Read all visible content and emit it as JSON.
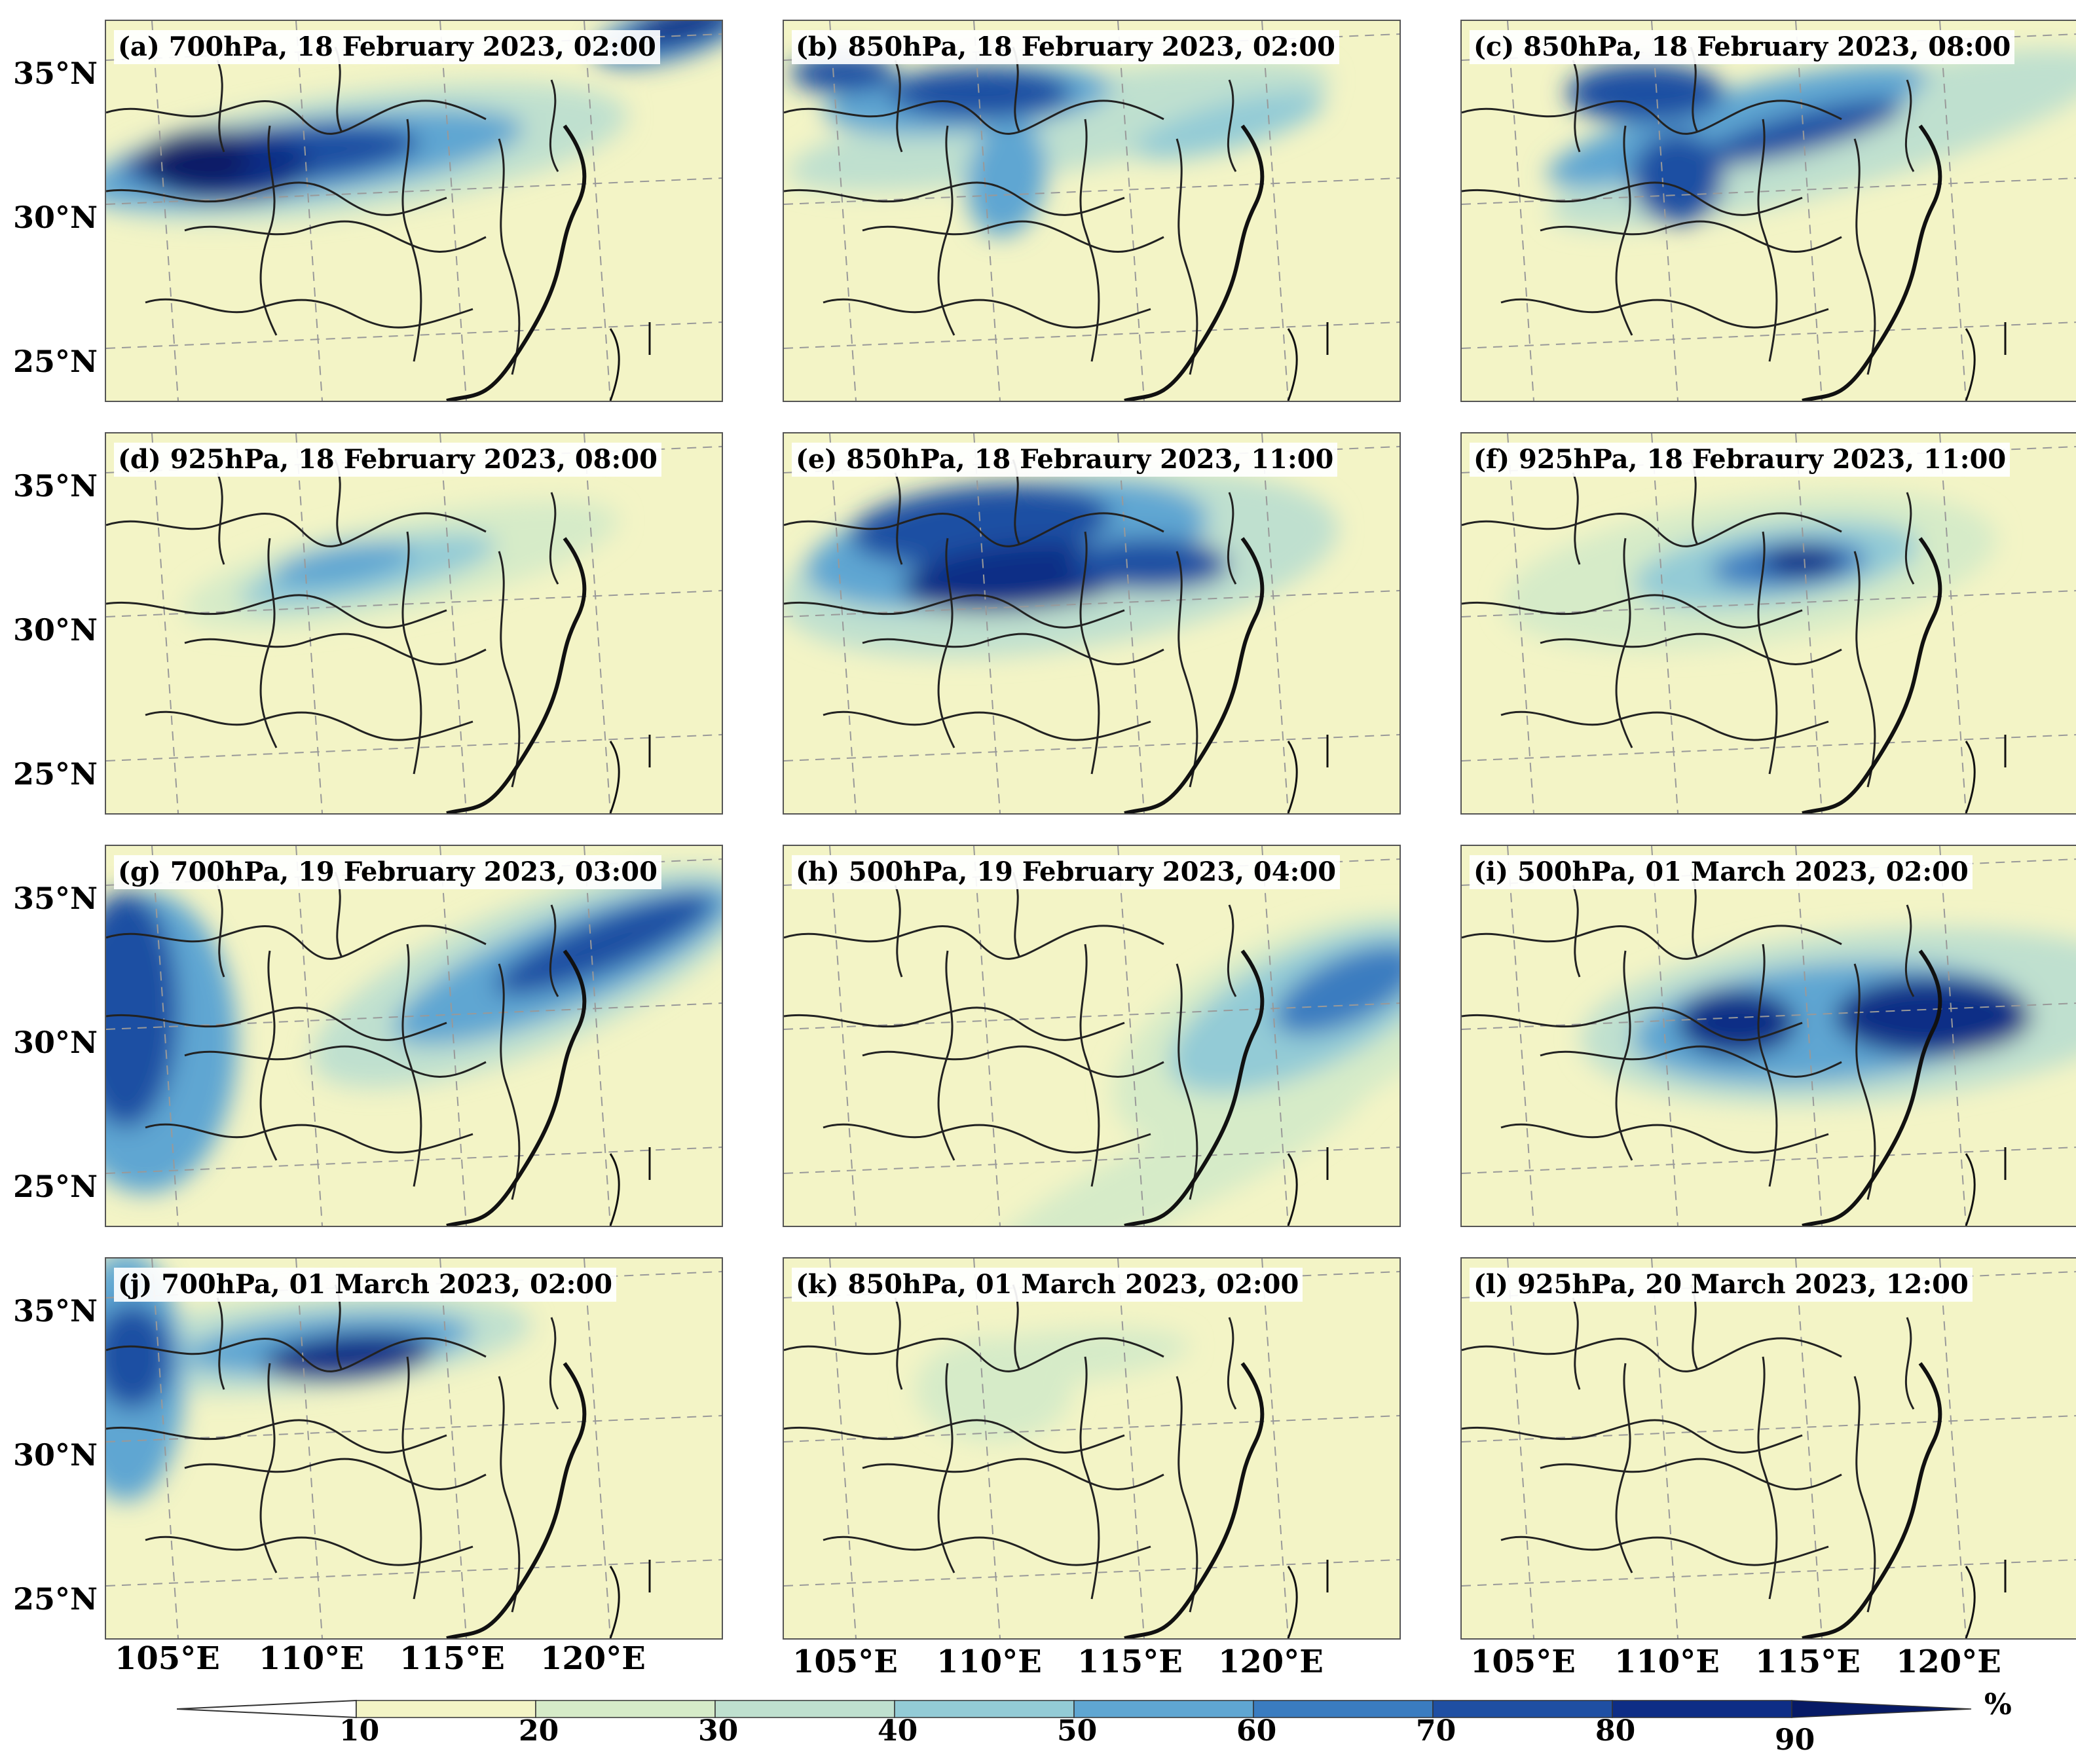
{
  "panels": [
    {
      "id": "a",
      "title": "(a) 700hPa, 18 February 2023, 02:00"
    },
    {
      "id": "b",
      "title": "(b) 850hPa, 18 February 2023, 02:00"
    },
    {
      "id": "c",
      "title": "(c) 850hPa, 18 February 2023, 08:00"
    },
    {
      "id": "d",
      "title": "(d) 925hPa, 18 February 2023, 08:00"
    },
    {
      "id": "e",
      "title": "(e) 850hPa, 18 Febraury 2023, 11:00"
    },
    {
      "id": "f",
      "title": "(f) 925hPa, 18 Febraury 2023, 11:00"
    },
    {
      "id": "g",
      "title": "(g) 700hPa, 19 February 2023, 03:00"
    },
    {
      "id": "h",
      "title": "(h) 500hPa, 19 February 2023, 04:00"
    },
    {
      "id": "i",
      "title": "(i) 500hPa, 01 March 2023, 02:00"
    },
    {
      "id": "j",
      "title": "(j) 700hPa, 01 March 2023, 02:00"
    },
    {
      "id": "k",
      "title": "(k) 850hPa, 01 March 2023, 02:00"
    },
    {
      "id": "l",
      "title": "(l) 925hPa, 20 March 2023, 12:00"
    }
  ],
  "lat_labels": [
    "35°N",
    "30°N",
    "25°N"
  ],
  "lon_labels": [
    "105°E",
    "110°E",
    "115°E",
    "120°E"
  ],
  "colorbar": {
    "unit": "%",
    "ticks": [
      "10",
      "20",
      "30",
      "40",
      "50",
      "60",
      "70",
      "80",
      "90"
    ],
    "colors": [
      "#f3f4c6",
      "#d6ebc8",
      "#bfe0cf",
      "#93cbd6",
      "#5fa6d2",
      "#3a7cc0",
      "#1f4fa3",
      "#0e2d86",
      "#071a66"
    ]
  }
}
